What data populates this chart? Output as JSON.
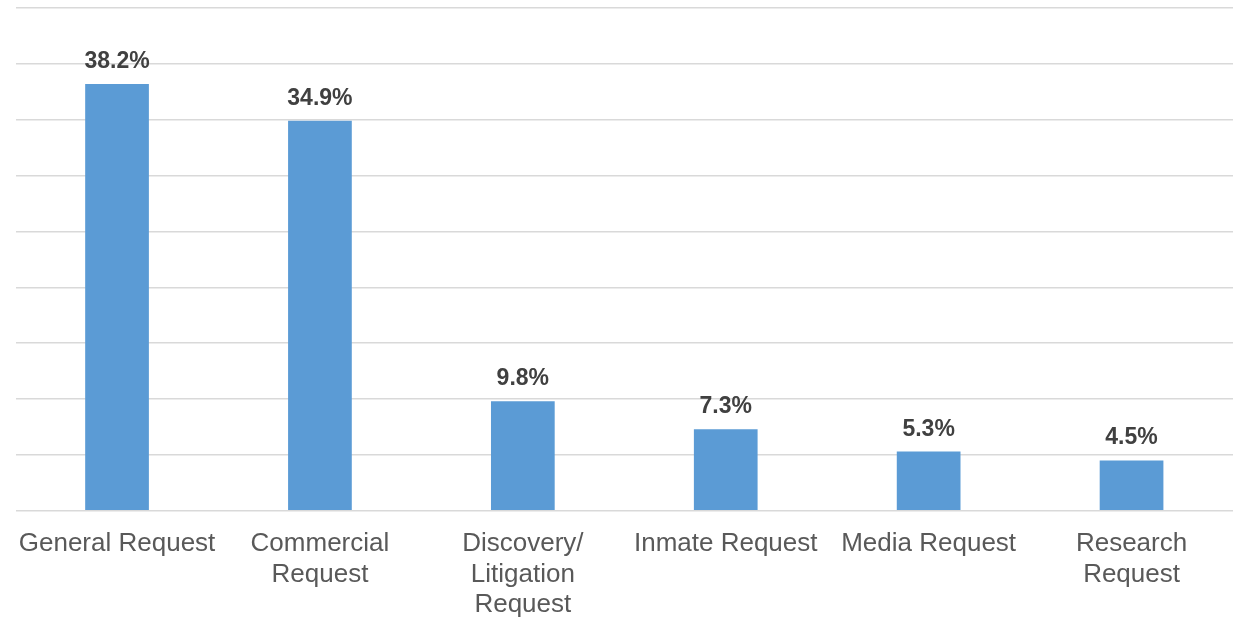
{
  "chart_data": {
    "type": "bar",
    "categories": [
      "General Request",
      "Commercial Request",
      "Discovery/Litigation Request",
      "Inmate Request",
      "Media Request",
      "Research Request"
    ],
    "values": [
      38.2,
      34.9,
      9.8,
      7.3,
      5.3,
      4.5
    ],
    "value_labels": [
      "38.2%",
      "34.9%",
      "9.8%",
      "7.3%",
      "5.3%",
      "4.5%"
    ],
    "color": "#5b9bd5",
    "ylim": [
      0,
      45
    ],
    "yticks": [
      {
        "value": 0,
        "label": null
      },
      {
        "value": 5,
        "label": null
      },
      {
        "value": 10,
        "label": null
      },
      {
        "value": 15,
        "label": null
      },
      {
        "value": 20,
        "label": null
      },
      {
        "value": 25,
        "label": null
      },
      {
        "value": 30,
        "label": null
      },
      {
        "value": 35,
        "label": null
      },
      {
        "value": 40,
        "label": null
      },
      {
        "value": 45,
        "label": null
      }
    ],
    "grid": "y",
    "tick_labels": "x"
  }
}
